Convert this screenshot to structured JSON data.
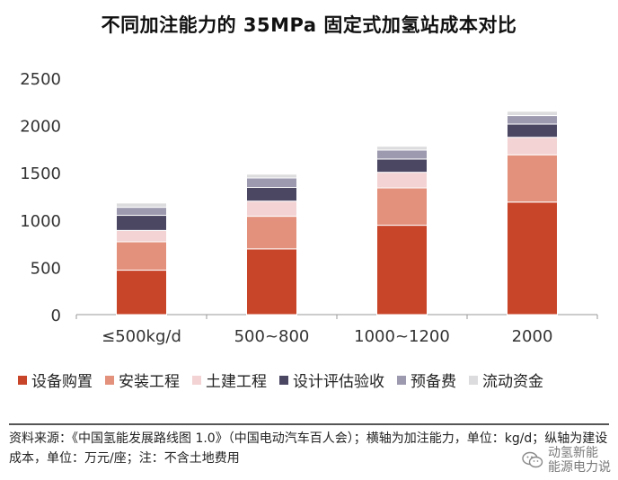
{
  "title": "不同加注能力的 35MPa 固定式加氢站成本对比",
  "chart_data": {
    "type": "bar",
    "stacked": true,
    "categories": [
      "≤500kg/d",
      "500~800",
      "1000~1200",
      "2000"
    ],
    "series": [
      {
        "name": "设备购置",
        "color": "#c8452a",
        "values": [
          470,
          695,
          945,
          1190
        ]
      },
      {
        "name": "安装工程",
        "color": "#e3917c",
        "values": [
          300,
          345,
          395,
          500
        ]
      },
      {
        "name": "土建工程",
        "color": "#f3d3d3",
        "values": [
          120,
          160,
          165,
          185
        ]
      },
      {
        "name": "设计评估验收",
        "color": "#4b4763",
        "values": [
          160,
          145,
          140,
          140
        ]
      },
      {
        "name": "预备费",
        "color": "#9d9aaf",
        "values": [
          85,
          100,
          95,
          90
        ]
      },
      {
        "name": "流动资金",
        "color": "#dcdcde",
        "values": [
          45,
          40,
          40,
          45
        ]
      }
    ],
    "ylim": [
      0,
      2500
    ],
    "yticks": [
      0,
      500,
      1000,
      1500,
      2000,
      2500
    ],
    "legend": "bottom",
    "grid": false
  },
  "source_note": "资料来源：《中国氢能发展路线图 1.0》（中国电动汽车百人会）；横轴为加注能力，单位：kg/d；纵轴为建设成本，单位：万元/座；注：不含土地费用",
  "watermark": {
    "line1": "动氢新能",
    "line2": "能源电力说"
  }
}
